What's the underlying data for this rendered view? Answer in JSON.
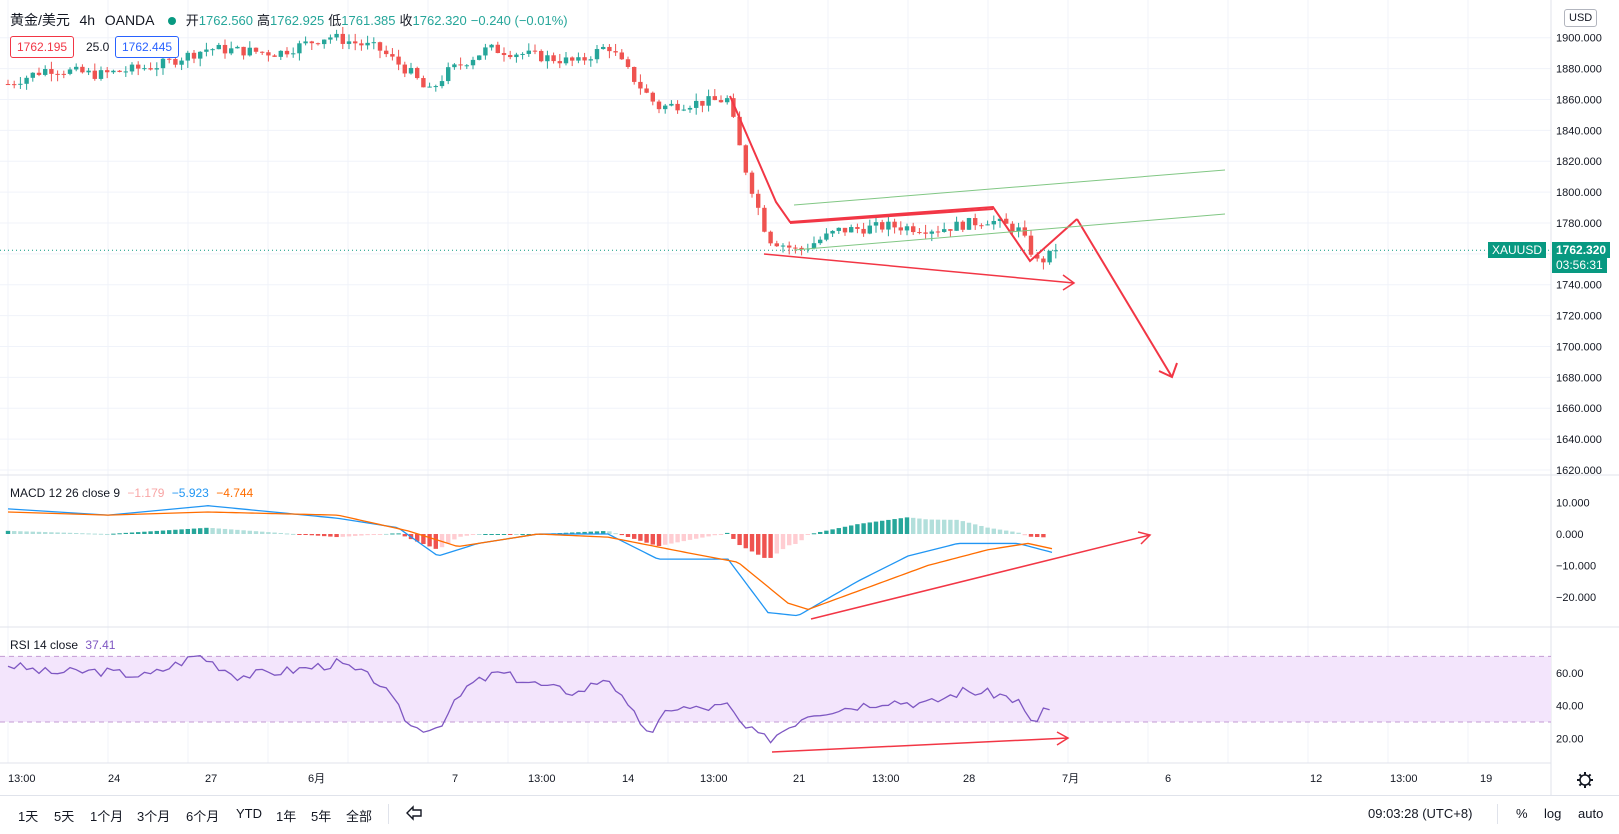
{
  "header": {
    "symbol_title": "黄金/美元",
    "interval": "4h",
    "broker": "OANDA",
    "ohlc": {
      "open_label": "开",
      "open": "1762.560",
      "high_label": "高",
      "high": "1762.925",
      "low_label": "低",
      "low": "1761.385",
      "close_label": "收",
      "close": "1762.320",
      "change": "−0.240 (−0.01%)"
    },
    "bid": "1762.195",
    "spread": "25.0",
    "ask": "1762.445"
  },
  "price_axis": {
    "currency_button": "USD",
    "ticks": [
      "1900.000",
      "1880.000",
      "1860.000",
      "1840.000",
      "1820.000",
      "1800.000",
      "1780.000",
      "1760.000",
      "1740.000",
      "1720.000",
      "1700.000",
      "1680.000",
      "1660.000",
      "1640.000",
      "1620.000"
    ],
    "last_label": "XAUUSD",
    "last_price": "1762.320",
    "countdown": "03:56:31"
  },
  "macd": {
    "title": "MACD 12 26 close 9",
    "hist_value": "−1.179",
    "macd_value": "−5.923",
    "signal_value": "−4.744",
    "ticks": [
      "10.000",
      "0.000",
      "−10.000",
      "−20.000"
    ]
  },
  "rsi": {
    "title": "RSI 14 close",
    "value": "37.41",
    "ticks": [
      "60.00",
      "40.00",
      "20.00"
    ]
  },
  "time_axis": {
    "labels": [
      "13:00",
      "24",
      "27",
      "6月",
      "7",
      "13:00",
      "14",
      "13:00",
      "21",
      "13:00",
      "28",
      "7月",
      "6",
      "12",
      "13:00",
      "19"
    ]
  },
  "toolbar": {
    "timeframes": [
      "1天",
      "5天",
      "1个月",
      "3个月",
      "6个月",
      "YTD",
      "1年",
      "5年",
      "全部"
    ],
    "clock": "09:03:28 (UTC+8)",
    "percent": "%",
    "log": "log",
    "auto": "auto"
  },
  "colors": {
    "up": "#26a69a",
    "down": "#ef5350",
    "drawing": "#f23645",
    "channel": "#81c784",
    "macd_line": "#2196f3",
    "signal_line": "#ff6d00",
    "rsi_line": "#7e57c2",
    "rsi_band": "#f3e5fc"
  },
  "chart_data": [
    {
      "type": "candlestick",
      "title": "黄金/美元 · 4h · OANDA",
      "ylim": [
        1620,
        1905
      ],
      "y_ticks": [
        1620,
        1640,
        1660,
        1680,
        1700,
        1720,
        1740,
        1760,
        1780,
        1800,
        1820,
        1840,
        1860,
        1880,
        1900
      ],
      "last_close": 1762.32,
      "close_path": [
        {
          "x": 0,
          "y": 1870
        },
        {
          "x": 40,
          "y": 1880
        },
        {
          "x": 90,
          "y": 1876
        },
        {
          "x": 150,
          "y": 1882
        },
        {
          "x": 200,
          "y": 1893
        },
        {
          "x": 270,
          "y": 1890
        },
        {
          "x": 320,
          "y": 1901
        },
        {
          "x": 370,
          "y": 1893
        },
        {
          "x": 405,
          "y": 1876
        },
        {
          "x": 420,
          "y": 1864
        },
        {
          "x": 440,
          "y": 1878
        },
        {
          "x": 480,
          "y": 1893
        },
        {
          "x": 530,
          "y": 1888
        },
        {
          "x": 570,
          "y": 1884
        },
        {
          "x": 600,
          "y": 1895
        },
        {
          "x": 630,
          "y": 1870
        },
        {
          "x": 650,
          "y": 1855
        },
        {
          "x": 690,
          "y": 1858
        },
        {
          "x": 720,
          "y": 1860
        },
        {
          "x": 735,
          "y": 1820
        },
        {
          "x": 760,
          "y": 1770
        },
        {
          "x": 790,
          "y": 1762
        },
        {
          "x": 830,
          "y": 1775
        },
        {
          "x": 880,
          "y": 1778
        },
        {
          "x": 930,
          "y": 1776
        },
        {
          "x": 980,
          "y": 1782
        },
        {
          "x": 1010,
          "y": 1776
        },
        {
          "x": 1030,
          "y": 1754
        },
        {
          "x": 1050,
          "y": 1762.32
        }
      ]
    },
    {
      "type": "line",
      "title": "MACD 12 26 close 9",
      "ylim": [
        -28,
        14
      ],
      "series": [
        {
          "name": "MACD",
          "points": [
            {
              "x": 0,
              "y": 8
            },
            {
              "x": 100,
              "y": 6
            },
            {
              "x": 200,
              "y": 9
            },
            {
              "x": 330,
              "y": 5
            },
            {
              "x": 390,
              "y": 2
            },
            {
              "x": 430,
              "y": -7
            },
            {
              "x": 470,
              "y": -3
            },
            {
              "x": 530,
              "y": 0
            },
            {
              "x": 600,
              "y": 0
            },
            {
              "x": 650,
              "y": -8
            },
            {
              "x": 720,
              "y": -8
            },
            {
              "x": 760,
              "y": -25
            },
            {
              "x": 790,
              "y": -26
            },
            {
              "x": 850,
              "y": -15
            },
            {
              "x": 900,
              "y": -7
            },
            {
              "x": 950,
              "y": -3
            },
            {
              "x": 1010,
              "y": -3
            },
            {
              "x": 1045,
              "y": -5.923
            }
          ]
        },
        {
          "name": "Signal",
          "points": [
            {
              "x": 0,
              "y": 7
            },
            {
              "x": 100,
              "y": 6
            },
            {
              "x": 200,
              "y": 7
            },
            {
              "x": 330,
              "y": 6
            },
            {
              "x": 400,
              "y": 1
            },
            {
              "x": 450,
              "y": -4
            },
            {
              "x": 530,
              "y": 0
            },
            {
              "x": 600,
              "y": -1
            },
            {
              "x": 680,
              "y": -6
            },
            {
              "x": 730,
              "y": -9
            },
            {
              "x": 780,
              "y": -22
            },
            {
              "x": 800,
              "y": -24
            },
            {
              "x": 860,
              "y": -17
            },
            {
              "x": 920,
              "y": -10
            },
            {
              "x": 980,
              "y": -5
            },
            {
              "x": 1020,
              "y": -3
            },
            {
              "x": 1045,
              "y": -4.744
            }
          ]
        }
      ]
    },
    {
      "type": "line",
      "title": "RSI 14 close",
      "ylim": [
        8,
        80
      ],
      "series": [
        {
          "name": "RSI",
          "points": [
            {
              "x": 0,
              "y": 65
            },
            {
              "x": 40,
              "y": 60
            },
            {
              "x": 90,
              "y": 61
            },
            {
              "x": 140,
              "y": 58
            },
            {
              "x": 190,
              "y": 71
            },
            {
              "x": 230,
              "y": 58
            },
            {
              "x": 290,
              "y": 62
            },
            {
              "x": 330,
              "y": 66
            },
            {
              "x": 370,
              "y": 55
            },
            {
              "x": 405,
              "y": 26
            },
            {
              "x": 430,
              "y": 27
            },
            {
              "x": 460,
              "y": 52
            },
            {
              "x": 490,
              "y": 60
            },
            {
              "x": 540,
              "y": 51
            },
            {
              "x": 570,
              "y": 48
            },
            {
              "x": 600,
              "y": 58
            },
            {
              "x": 620,
              "y": 38
            },
            {
              "x": 645,
              "y": 22
            },
            {
              "x": 660,
              "y": 39
            },
            {
              "x": 690,
              "y": 38
            },
            {
              "x": 720,
              "y": 40
            },
            {
              "x": 735,
              "y": 27
            },
            {
              "x": 760,
              "y": 19
            },
            {
              "x": 800,
              "y": 35
            },
            {
              "x": 840,
              "y": 39
            },
            {
              "x": 880,
              "y": 43
            },
            {
              "x": 920,
              "y": 41
            },
            {
              "x": 955,
              "y": 49
            },
            {
              "x": 990,
              "y": 47
            },
            {
              "x": 1010,
              "y": 43
            },
            {
              "x": 1025,
              "y": 27
            },
            {
              "x": 1035,
              "y": 38
            },
            {
              "x": 1045,
              "y": 37.41
            }
          ]
        }
      ]
    }
  ]
}
